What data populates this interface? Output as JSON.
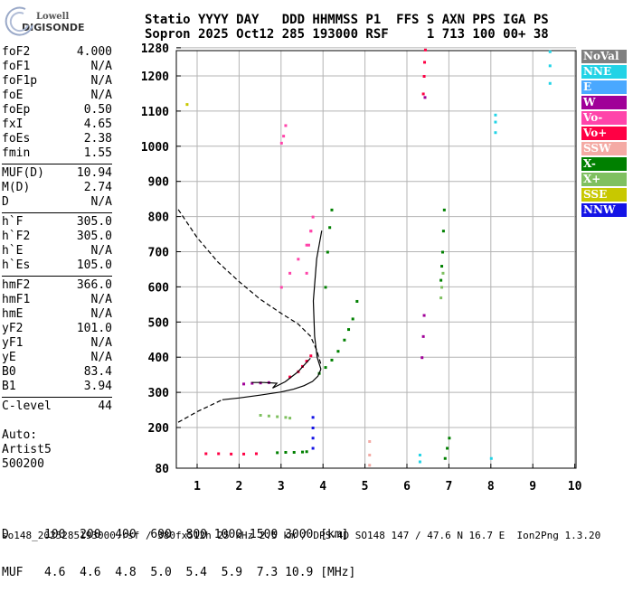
{
  "header": {
    "logo_top": "Lowell",
    "logo_bottom": "DIGISONDE",
    "line1": "Statio YYYY DAY   DDD HHMMSS P1  FFS S AXN PPS IGA PS",
    "line2": "Sopron 2025 Oct12 285 193000 RSF     1 713 100 00+ 38"
  },
  "params": [
    {
      "label": "foF2",
      "value": "4.000"
    },
    {
      "label": "foF1",
      "value": "N/A"
    },
    {
      "label": "foF1p",
      "value": "N/A"
    },
    {
      "label": "foE",
      "value": "N/A"
    },
    {
      "label": "foEp",
      "value": "0.50"
    },
    {
      "label": "fxI",
      "value": "4.65"
    },
    {
      "label": "foEs",
      "value": "2.38"
    },
    {
      "label": "fmin",
      "value": "1.55"
    },
    {
      "label": "MUF(D)",
      "value": "10.94"
    },
    {
      "label": "M(D)",
      "value": "2.74"
    },
    {
      "label": "D",
      "value": "N/A"
    },
    {
      "label": "h`F",
      "value": "305.0"
    },
    {
      "label": "h`F2",
      "value": "305.0"
    },
    {
      "label": "h`E",
      "value": "N/A"
    },
    {
      "label": "h`Es",
      "value": "105.0"
    },
    {
      "label": "hmF2",
      "value": "366.0"
    },
    {
      "label": "hmF1",
      "value": "N/A"
    },
    {
      "label": "hmE",
      "value": "N/A"
    },
    {
      "label": "yF2",
      "value": "101.0"
    },
    {
      "label": "yF1",
      "value": "N/A"
    },
    {
      "label": "yE",
      "value": "N/A"
    },
    {
      "label": "B0",
      "value": "83.4"
    },
    {
      "label": "B1",
      "value": "3.94"
    },
    {
      "label": "C-level",
      "value": "44"
    }
  ],
  "auto": {
    "line1": "Auto:",
    "line2": "Artist5",
    "line3": "500200"
  },
  "legend": [
    {
      "label": "NoVal",
      "color": "#808080"
    },
    {
      "label": "NNE",
      "color": "#22d3e6"
    },
    {
      "label": "E",
      "color": "#4aa8ff"
    },
    {
      "label": "W",
      "color": "#a00098"
    },
    {
      "label": "Vo-",
      "color": "#ff44aa"
    },
    {
      "label": "Vo+",
      "color": "#ff0044"
    },
    {
      "label": "SSW",
      "color": "#f4aaa4"
    },
    {
      "label": "X-",
      "color": "#008000"
    },
    {
      "label": "X+",
      "color": "#7fc060"
    },
    {
      "label": "SSE",
      "color": "#c8c800"
    },
    {
      "label": "NNW",
      "color": "#1414e6"
    }
  ],
  "muf_table": {
    "d_line": "D     100  200  400  600  800 1000 1500 3000 [km]",
    "muf_line": "MUF   4.6  4.6  4.8  5.0  5.4  5.9  7.3 10.9 [MHz]"
  },
  "footer": "so148_2025285193000.rsf / 380fx512h 25 kHz 2.5 km / DPS-4D SO148 147 / 47.6 N 16.7 E  Ion2Png 1.3.20",
  "chart_data": {
    "type": "scatter",
    "x_ticks": [
      "1",
      "2",
      "3",
      "4",
      "5",
      "6",
      "7",
      "8",
      "9",
      "10"
    ],
    "y_ticks": [
      "80",
      "200",
      "300",
      "400",
      "500",
      "600",
      "700",
      "800",
      "900",
      "1000",
      "1100",
      "1200",
      "1280"
    ],
    "xlim": [
      0.5,
      10
    ],
    "ylim": [
      80,
      1280
    ],
    "grid": true,
    "series": [
      {
        "color": "#000000",
        "style": "solid",
        "points": [
          [
            1.6,
            279
          ],
          [
            2.0,
            284
          ],
          [
            2.5,
            292
          ],
          [
            3.0,
            301
          ],
          [
            3.3,
            309
          ],
          [
            3.55,
            319
          ],
          [
            3.75,
            331
          ],
          [
            3.88,
            346
          ],
          [
            3.95,
            366
          ]
        ]
      },
      {
        "color": "#000000",
        "style": "solid",
        "points": [
          [
            3.95,
            366
          ],
          [
            3.86,
            400
          ],
          [
            3.8,
            460
          ],
          [
            3.77,
            560
          ],
          [
            3.85,
            680
          ],
          [
            3.97,
            760
          ]
        ]
      },
      {
        "color": "#000000",
        "style": "dashed",
        "points": [
          [
            0.55,
            820
          ],
          [
            1.0,
            740
          ],
          [
            1.5,
            670
          ],
          [
            2.0,
            615
          ],
          [
            2.5,
            565
          ],
          [
            3.0,
            525
          ],
          [
            3.4,
            495
          ],
          [
            3.7,
            460
          ],
          [
            3.85,
            420
          ],
          [
            3.95,
            380
          ]
        ]
      },
      {
        "color": "#000000",
        "style": "dashed",
        "points": [
          [
            0.55,
            215
          ],
          [
            1.0,
            245
          ],
          [
            1.6,
            279
          ]
        ]
      },
      {
        "color": "#000000",
        "style": "solid",
        "points": [
          [
            2.3,
            328
          ],
          [
            2.6,
            328
          ],
          [
            2.9,
            326
          ],
          [
            2.8,
            312
          ],
          [
            3.1,
            330
          ],
          [
            3.4,
            358
          ],
          [
            3.7,
            397
          ]
        ]
      }
    ],
    "echoes": [
      {
        "color": "#008000",
        "x": [
          3.9,
          4.05,
          4.2,
          4.35,
          4.5,
          4.6,
          4.7,
          4.8
        ],
        "y": [
          355,
          372,
          393,
          418,
          450,
          480,
          510,
          560
        ]
      },
      {
        "color": "#008000",
        "x": [
          4.05,
          4.1,
          4.15,
          4.2
        ],
        "y": [
          600,
          700,
          770,
          820
        ]
      },
      {
        "color": "#7fc060",
        "x": [
          2.5,
          2.7,
          2.9,
          3.1,
          3.2
        ],
        "y": [
          236,
          234,
          232,
          230,
          228
        ]
      },
      {
        "color": "#ff44aa",
        "x": [
          3.0,
          3.2,
          3.4,
          3.6,
          3.7
        ],
        "y": [
          600,
          640,
          680,
          720,
          760
        ]
      },
      {
        "color": "#ff44aa",
        "x": [
          3.6,
          3.65,
          3.7,
          3.75
        ],
        "y": [
          640,
          720,
          760,
          800
        ]
      },
      {
        "color": "#ff44aa",
        "x": [
          3.0,
          3.05,
          3.1
        ],
        "y": [
          1010,
          1030,
          1060
        ]
      },
      {
        "color": "#a00098",
        "x": [
          2.1,
          2.3,
          2.5,
          2.7
        ],
        "y": [
          325,
          327,
          328,
          329
        ]
      },
      {
        "color": "#ff0044",
        "x": [
          3.2,
          3.4,
          3.5,
          3.6,
          3.7
        ],
        "y": [
          345,
          360,
          375,
          390,
          405
        ]
      },
      {
        "color": "#ff0044",
        "x": [
          1.2,
          1.5,
          1.8,
          2.1,
          2.4
        ],
        "y": [
          124,
          124,
          123,
          123,
          124
        ]
      },
      {
        "color": "#008000",
        "x": [
          2.9,
          3.1,
          3.3,
          3.5,
          3.6
        ],
        "y": [
          127,
          128,
          128,
          129,
          130
        ]
      },
      {
        "color": "#a00098",
        "x": [
          6.35,
          6.38,
          6.4,
          6.42
        ],
        "y": [
          400,
          460,
          520,
          1140
        ]
      },
      {
        "color": "#ff0044",
        "x": [
          6.38,
          6.4,
          6.41,
          6.43
        ],
        "y": [
          1150,
          1200,
          1240,
          1275
        ]
      },
      {
        "color": "#008000",
        "x": [
          6.8,
          6.82,
          6.84,
          6.86,
          6.88
        ],
        "y": [
          620,
          660,
          700,
          760,
          820
        ]
      },
      {
        "color": "#7fc060",
        "x": [
          6.8,
          6.82,
          6.85
        ],
        "y": [
          570,
          600,
          640
        ]
      },
      {
        "color": "#22d3e6",
        "x": [
          8.1,
          8.1,
          8.1
        ],
        "y": [
          1040,
          1070,
          1090
        ]
      },
      {
        "color": "#22d3e6",
        "x": [
          9.4,
          9.4,
          9.4
        ],
        "y": [
          1180,
          1230,
          1270
        ]
      },
      {
        "color": "#f4aaa4",
        "x": [
          5.1,
          5.1,
          5.1
        ],
        "y": [
          90,
          120,
          160
        ]
      },
      {
        "color": "#22d3e6",
        "x": [
          6.3,
          6.3,
          8.0
        ],
        "y": [
          100,
          120,
          110
        ]
      },
      {
        "color": "#1414e6",
        "x": [
          3.75,
          3.75,
          3.75,
          3.75
        ],
        "y": [
          140,
          170,
          200,
          230
        ]
      },
      {
        "color": "#008000",
        "x": [
          6.9,
          6.95,
          7.0
        ],
        "y": [
          110,
          140,
          170
        ]
      },
      {
        "color": "#c8c800",
        "x": [
          0.75
        ],
        "y": [
          1120
        ]
      }
    ]
  }
}
